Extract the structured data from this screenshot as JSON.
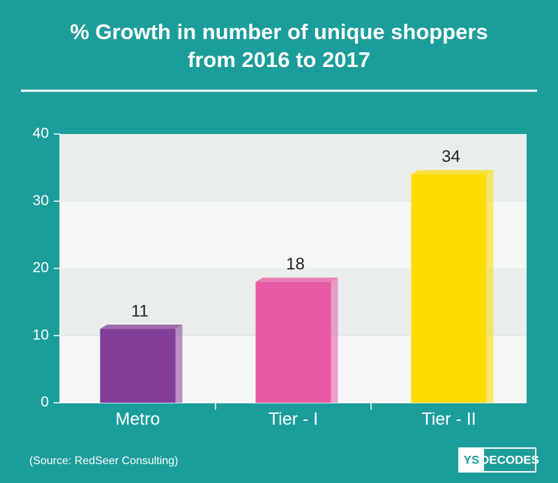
{
  "chart_data": {
    "type": "bar",
    "title": [
      "% Growth in number of unique shoppers",
      "from 2016 to 2017"
    ],
    "categories": [
      "Metro",
      "Tier - I",
      "Tier - II"
    ],
    "values": [
      11,
      18,
      34
    ],
    "colors": [
      "#833f97",
      "#e85aa2",
      "#fddd00"
    ],
    "ylim": [
      0,
      40
    ],
    "yticks": [
      0,
      10,
      20,
      30,
      40
    ],
    "source": "(Source: RedSeer Consulting)",
    "logo": [
      "YS",
      "DECODES"
    ]
  }
}
